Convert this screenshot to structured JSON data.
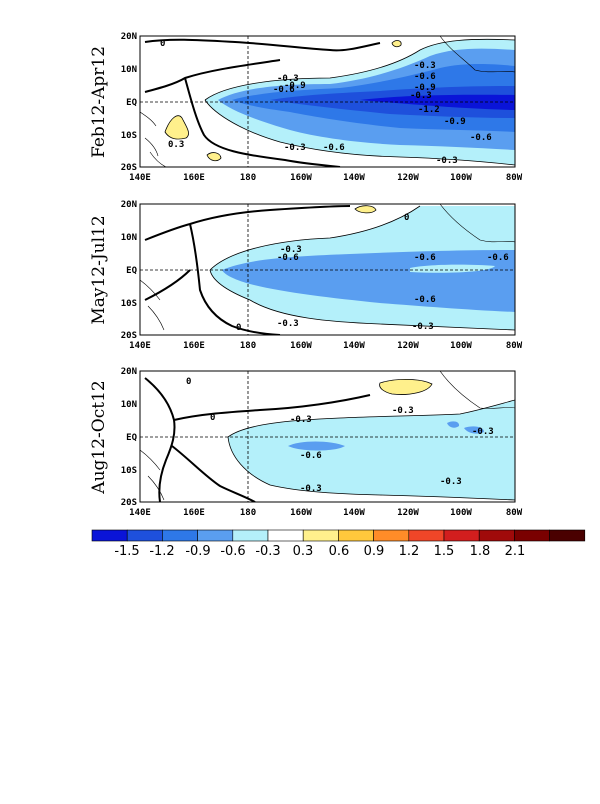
{
  "panels": [
    {
      "title": "Feb12-Apr12",
      "contour_labels": [
        "-0.3",
        "-0.6",
        "-0.9",
        "-0.3",
        "-0.6",
        "-0.9",
        "-0.3",
        "-1.2",
        "-0.9",
        "-0.6",
        "-0.3",
        "-0.6",
        "-0.3",
        "0.3",
        "0"
      ]
    },
    {
      "title": "May12-Jul12",
      "contour_labels": [
        "-0.3",
        "-0.6",
        "-0.6",
        "-0.6",
        "-0.6",
        "-0.3",
        "-0.3",
        "0",
        "0"
      ]
    },
    {
      "title": "Aug12-Oct12",
      "contour_labels": [
        "-0.3",
        "-0.3",
        "-0.3",
        "-0.6",
        "-0.3",
        "-0.3",
        "0",
        "0"
      ]
    }
  ],
  "x_ticks": [
    "140E",
    "160E",
    "180",
    "160W",
    "140W",
    "120W",
    "100W",
    "80W"
  ],
  "y_ticks": [
    "20N",
    "10N",
    "EQ",
    "10S",
    "20S"
  ],
  "colorbar": {
    "labels": [
      "-1.5",
      "-1.2",
      "-0.9",
      "-0.6",
      "-0.3",
      "0.3",
      "0.6",
      "0.9",
      "1.2",
      "1.5",
      "1.8",
      "2.1"
    ],
    "colors": [
      "#0a14d8",
      "#1e50dc",
      "#2e78e8",
      "#5a9ef0",
      "#b4f0fa",
      "#ffffff",
      "#fff08c",
      "#ffc83c",
      "#ff8c28",
      "#f04628",
      "#d21e1e",
      "#a00a0a",
      "#7a0000",
      "#4a0000"
    ]
  }
}
